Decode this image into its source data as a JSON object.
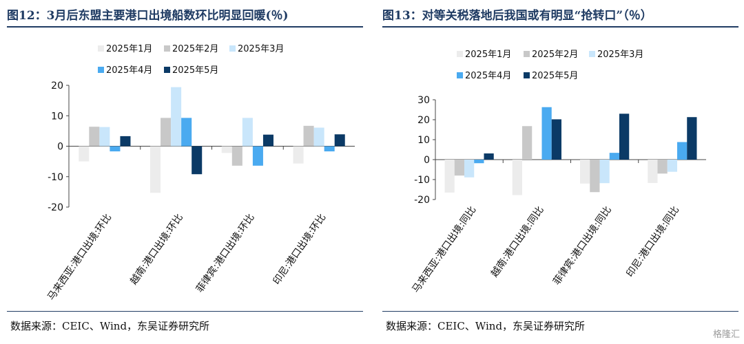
{
  "charts": [
    {
      "title": "图12：3月后东盟主要港口出境船数环比明显回暖(％)",
      "source": "数据来源：CEIC、Wind，东吴证券研究所",
      "chart_data": {
        "type": "bar",
        "categories": [
          "马来西亚:港口出境:环比",
          "越南:港口出境:环比",
          "菲律宾:港口出境:环比",
          "印尼:港口出境:环比"
        ],
        "series": [
          {
            "name": "2025年1月",
            "color": "#ececec",
            "values": [
              -5,
              -15.3,
              -2.2,
              -5.7
            ]
          },
          {
            "name": "2025年2月",
            "color": "#c8c8c8",
            "values": [
              6.4,
              9.3,
              -6.4,
              6.7
            ]
          },
          {
            "name": "2025年3月",
            "color": "#c9e6fb",
            "values": [
              6.3,
              19.4,
              9.3,
              6.1
            ]
          },
          {
            "name": "2025年4月",
            "color": "#4aaaf0",
            "values": [
              -1.7,
              9.3,
              -6.4,
              -1.7
            ]
          },
          {
            "name": "2025年5月",
            "color": "#0b3a66",
            "values": [
              3.3,
              -9.2,
              3.8,
              3.9
            ]
          }
        ],
        "ylim": [
          -20,
          20
        ],
        "yticks": [
          20,
          10,
          0,
          -10,
          -20
        ],
        "legend": "top"
      }
    },
    {
      "title": "图13：对等关税落地后我国或有明显“抢转口”（％）",
      "source": "数据来源：CEIC、Wind，东吴证券研究所",
      "chart_data": {
        "type": "bar",
        "categories": [
          "马来西亚:港口出境:同比",
          "越南:港口出境:同比",
          "菲律宾:港口出境:同比",
          "印尼:港口出境:同比"
        ],
        "series": [
          {
            "name": "2025年1月",
            "color": "#ececec",
            "values": [
              -16.5,
              -17.8,
              -12,
              -11.7
            ]
          },
          {
            "name": "2025年2月",
            "color": "#c8c8c8",
            "values": [
              -8,
              16.8,
              -16.3,
              -7
            ]
          },
          {
            "name": "2025年3月",
            "color": "#c9e6fb",
            "values": [
              -8.9,
              0,
              -11.8,
              -6.1
            ]
          },
          {
            "name": "2025年4月",
            "color": "#4aaaf0",
            "values": [
              -1.8,
              26.3,
              3.4,
              8.8
            ]
          },
          {
            "name": "2025年5月",
            "color": "#0b3a66",
            "values": [
              3.1,
              20.2,
              23,
              21.3
            ]
          }
        ],
        "ylim": [
          -20,
          30
        ],
        "yticks": [
          30,
          20,
          10,
          0,
          -10,
          -20
        ],
        "legend": "top"
      }
    }
  ],
  "watermark": "格隆汇"
}
